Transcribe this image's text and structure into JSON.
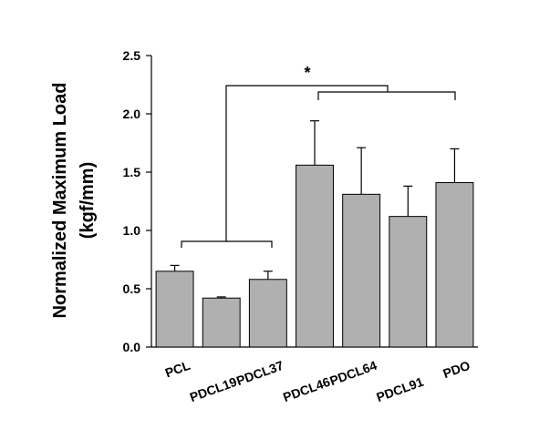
{
  "chart_data": {
    "type": "bar",
    "ylabel": [
      "Normalized Maximum Load",
      "(kgf/mm)"
    ],
    "categories": [
      "PCL",
      "PDCL19",
      "PDCL37",
      "PDCL46",
      "PDCL64",
      "PDCL91",
      "PDO"
    ],
    "values": [
      0.65,
      0.42,
      0.58,
      1.56,
      1.31,
      1.12,
      1.41
    ],
    "errors": [
      0.05,
      0.01,
      0.07,
      0.38,
      0.4,
      0.26,
      0.29
    ],
    "color": "#b0b0b0",
    "ylim": [
      0,
      2.5
    ],
    "yticks": [
      {
        "value": 0,
        "label": "0.0"
      },
      0.5,
      {
        "value": 1,
        "label": "1.0"
      },
      1.5,
      {
        "value": 2,
        "label": "2.0"
      },
      2.5
    ],
    "annotation": "*"
  }
}
